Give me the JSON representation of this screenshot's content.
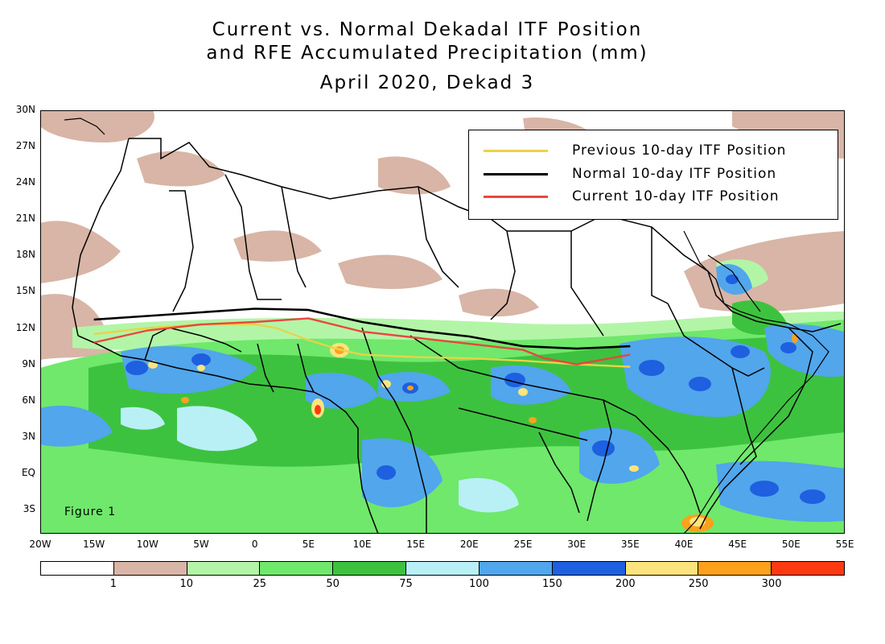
{
  "title": {
    "line1": "Current vs. Normal Dekadal ITF Position",
    "line2": "and RFE Accumulated Precipitation (mm)",
    "line3": "April 2020, Dekad 3"
  },
  "legend": {
    "items": [
      {
        "label": "Previous 10-day ITF Position",
        "color": "#e8d34a"
      },
      {
        "label": "Normal 10-day ITF Position",
        "color": "#000000"
      },
      {
        "label": "Current 10-day ITF Position",
        "color": "#e8473d"
      }
    ]
  },
  "figure_label": "Figure 1",
  "map": {
    "lon_range": [
      -20,
      55
    ],
    "lat_range": [
      -5,
      30
    ],
    "lat_ticks": [
      "30N",
      "27N",
      "24N",
      "21N",
      "18N",
      "15N",
      "12N",
      "9N",
      "6N",
      "3N",
      "EQ",
      "3S"
    ],
    "lon_ticks": [
      "20W",
      "15W",
      "10W",
      "5W",
      "0",
      "5E",
      "10E",
      "15E",
      "20E",
      "25E",
      "30E",
      "35E",
      "40E",
      "45E",
      "50E",
      "55E"
    ]
  },
  "chart_data": {
    "type": "line",
    "title": "Current vs. Normal Dekadal ITF Position and RFE Accumulated Precipitation (mm)",
    "subtitle": "April 2020, Dekad 3",
    "xlabel": "",
    "ylabel": "",
    "xlim": [
      -20,
      55
    ],
    "ylim": [
      -5,
      30
    ],
    "series": [
      {
        "name": "Previous 10-day ITF Position",
        "x": [
          -15,
          -10,
          -5,
          0,
          2,
          5,
          8,
          10,
          15,
          20,
          25,
          30,
          35
        ],
        "y": [
          11.5,
          12.0,
          12.3,
          12.3,
          12.0,
          11.0,
          10.2,
          9.8,
          9.6,
          9.5,
          9.3,
          9.0,
          8.8
        ]
      },
      {
        "name": "Normal 10-day ITF Position",
        "x": [
          -15,
          -10,
          -5,
          0,
          5,
          10,
          15,
          20,
          25,
          30,
          35
        ],
        "y": [
          12.7,
          13.0,
          13.3,
          13.6,
          13.5,
          12.5,
          11.8,
          11.3,
          10.5,
          10.3,
          10.5
        ]
      },
      {
        "name": "Current 10-day ITF Position",
        "x": [
          -15,
          -10,
          -5,
          0,
          5,
          10,
          15,
          20,
          25,
          27,
          30,
          35
        ],
        "y": [
          10.8,
          11.8,
          12.3,
          12.5,
          12.8,
          11.7,
          11.2,
          10.7,
          10.2,
          9.5,
          9.0,
          9.8
        ]
      }
    ]
  },
  "colorbar": {
    "colors": [
      "#ffffff",
      "#d8b5a6",
      "#b3f5a7",
      "#6fe86b",
      "#3dc23f",
      "#b8f0f6",
      "#51a6ec",
      "#1e60e0",
      "#fbe47d",
      "#fba11c",
      "#fb3a12"
    ],
    "labels": [
      "1",
      "10",
      "25",
      "50",
      "75",
      "100",
      "150",
      "200",
      "250",
      "300"
    ]
  }
}
